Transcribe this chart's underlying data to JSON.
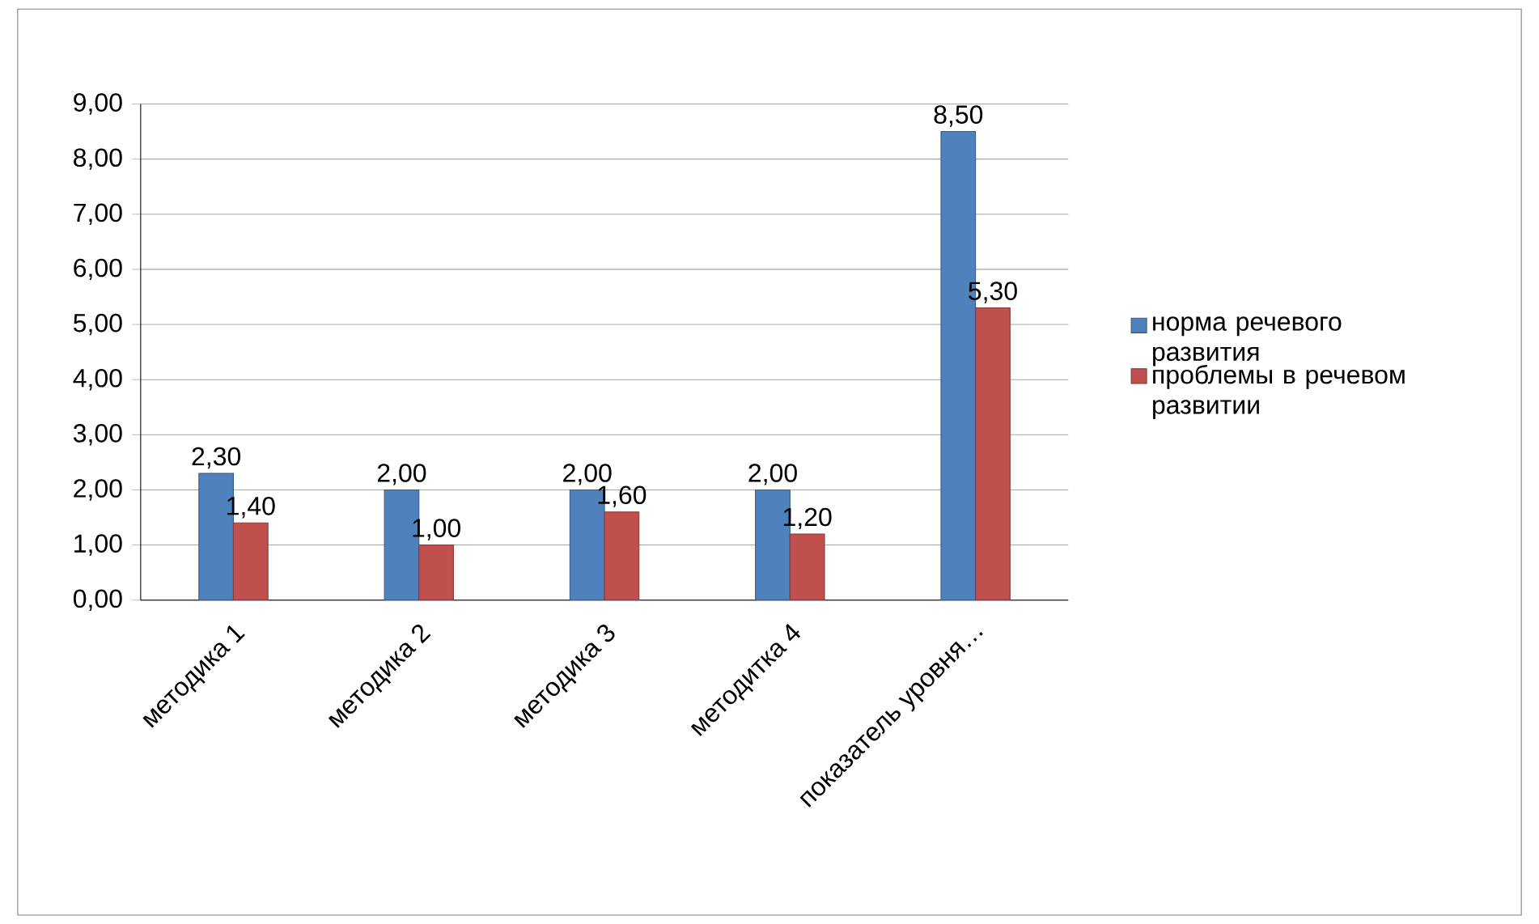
{
  "chart_data": {
    "type": "bar",
    "categories": [
      "методика 1",
      "методика 2",
      "методика 3",
      "методитка 4",
      "показатель уровня…"
    ],
    "series": [
      {
        "name": "норма речевого развития",
        "color": "#4f81bd",
        "values": [
          2.3,
          2.0,
          2.0,
          2.0,
          8.5
        ],
        "value_labels": [
          "2,30",
          "2,00",
          "2,00",
          "2,00",
          "8,50"
        ]
      },
      {
        "name": "проблемы в речевом развитии",
        "color": "#c0504d",
        "values": [
          1.4,
          1.0,
          1.6,
          1.2,
          5.3
        ],
        "value_labels": [
          "1,40",
          "1,00",
          "1,60",
          "1,20",
          "5,30"
        ]
      }
    ],
    "ylim": [
      0,
      9
    ],
    "yticks": [
      {
        "value": 0,
        "label": "0,00"
      },
      {
        "value": 1,
        "label": "1,00"
      },
      {
        "value": 2,
        "label": "2,00"
      },
      {
        "value": 3,
        "label": "3,00"
      },
      {
        "value": 4,
        "label": "4,00"
      },
      {
        "value": 5,
        "label": "5,00"
      },
      {
        "value": 6,
        "label": "6,00"
      },
      {
        "value": 7,
        "label": "7,00"
      },
      {
        "value": 8,
        "label": "8,00"
      },
      {
        "value": 9,
        "label": "9,00"
      }
    ],
    "grid": "y",
    "legend": "right"
  }
}
